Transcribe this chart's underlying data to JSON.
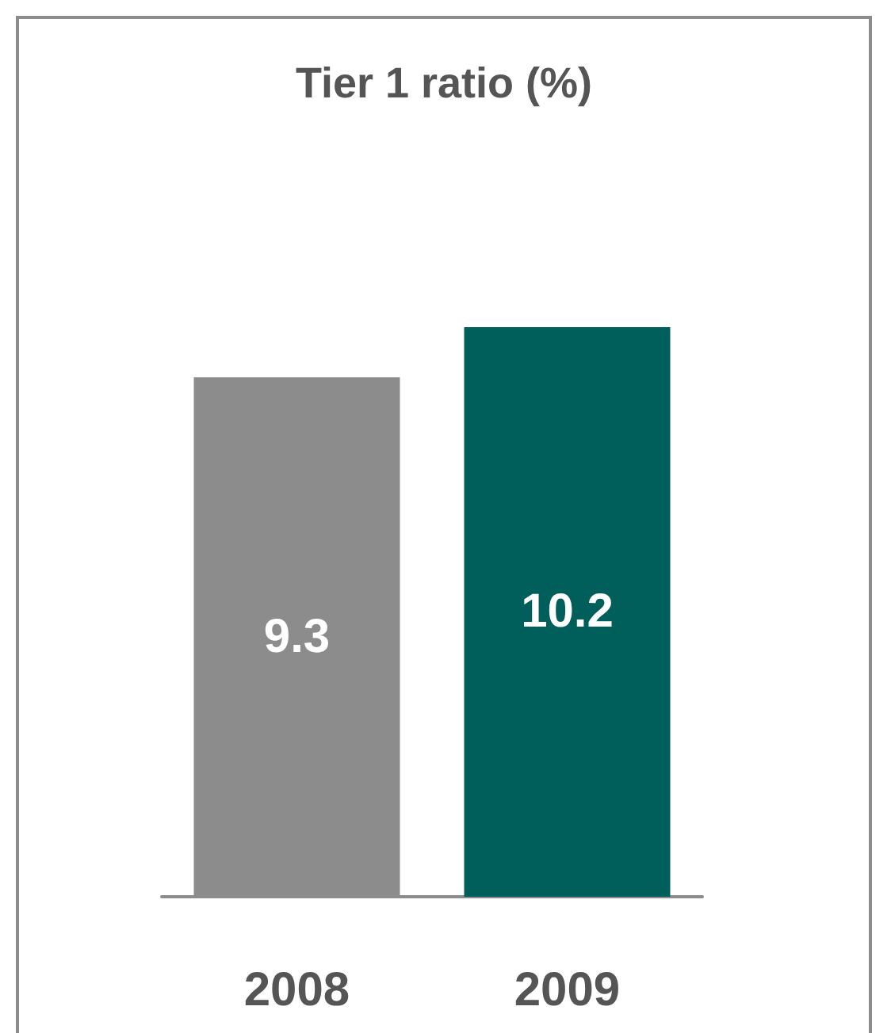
{
  "chart_data": {
    "type": "bar",
    "title": "Tier 1 ratio (%)",
    "categories": [
      "2008",
      "2009"
    ],
    "values": [
      9.3,
      10.2
    ],
    "colors": [
      "#8c8c8c",
      "#005f5a"
    ],
    "data_labels": true
  }
}
